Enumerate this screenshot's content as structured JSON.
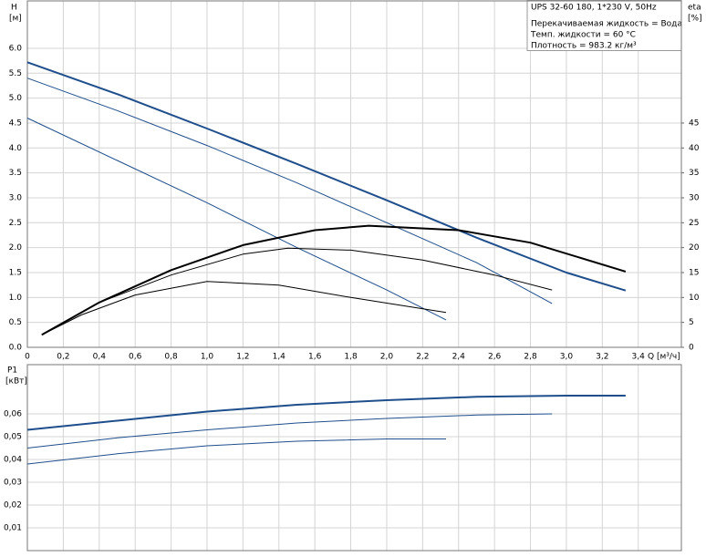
{
  "chart_data": [
    {
      "type": "line",
      "title": "UPS 32-60 180, 1*230 V, 50Hz",
      "annotations": [
        "Перекачиваемая жидкость = Вода",
        "Темп. жидкости = 60 °C",
        "Плотность = 983.2 кг/м³"
      ],
      "ylabel": "H",
      "yunit": "[м]",
      "y2label": "eta",
      "y2unit": "[%]",
      "xlabel": "Q [м³/ч]",
      "xlim": [
        0,
        3.64
      ],
      "ylim": [
        0,
        6.95
      ],
      "y2lim": [
        0,
        69.5
      ],
      "grid": true,
      "xticks": [
        0,
        {
          "value": 0.2,
          "label": "0,2"
        },
        {
          "value": 0.4,
          "label": "0,4"
        },
        {
          "value": 0.6,
          "label": "0,6"
        },
        {
          "value": 0.8,
          "label": "0,8"
        },
        {
          "value": 1.0,
          "label": "1,0"
        },
        {
          "value": 1.2,
          "label": "1,2"
        },
        {
          "value": 1.4,
          "label": "1,4"
        },
        {
          "value": 1.6,
          "label": "1,6"
        },
        {
          "value": 1.8,
          "label": "1,8"
        },
        {
          "value": 2.0,
          "label": "2,0"
        },
        {
          "value": 2.2,
          "label": "2,2"
        },
        {
          "value": 2.4,
          "label": "2,4"
        },
        {
          "value": 2.6,
          "label": "2,6"
        },
        {
          "value": 2.8,
          "label": "2,8"
        },
        {
          "value": 3.0,
          "label": "3,0"
        },
        {
          "value": 3.2,
          "label": "3,2"
        },
        {
          "value": 3.4,
          "label": "3,4"
        }
      ],
      "yticks": [
        {
          "value": 0,
          "label": "0.0"
        },
        0.5,
        {
          "value": 1,
          "label": "1.0"
        },
        1.5,
        {
          "value": 2,
          "label": "2.0"
        },
        2.5,
        {
          "value": 3,
          "label": "3.0"
        },
        3.5,
        {
          "value": 4,
          "label": "4.0"
        },
        4.5,
        {
          "value": 5,
          "label": "5.0"
        },
        5.5,
        {
          "value": 6,
          "label": "6.0"
        }
      ],
      "y2ticks": [
        0,
        5,
        10,
        15,
        20,
        25,
        30,
        35,
        40,
        45
      ],
      "series": [
        {
          "color": "#1f4e8c",
          "width": 2,
          "x": [
            0,
            0.5,
            1.0,
            1.5,
            2.0,
            2.5,
            3.0,
            3.33
          ],
          "values": [
            5.72,
            5.08,
            4.39,
            3.68,
            2.95,
            2.2,
            1.5,
            1.14
          ]
        },
        {
          "color": "#1f4e8c",
          "width": 1,
          "x": [
            0,
            0.5,
            1.0,
            1.5,
            2.0,
            2.5,
            2.92
          ],
          "values": [
            5.4,
            4.75,
            4.05,
            3.3,
            2.5,
            1.7,
            0.88
          ]
        },
        {
          "color": "#1f4e8c",
          "width": 1,
          "x": [
            0,
            0.5,
            1.0,
            1.5,
            2.0,
            2.33
          ],
          "values": [
            4.6,
            3.75,
            2.9,
            2.0,
            1.15,
            0.55
          ]
        },
        {
          "color": "#000000",
          "width": 2,
          "axis": "y2",
          "x": [
            0.08,
            0.4,
            0.8,
            1.2,
            1.6,
            1.9,
            2.4,
            2.8,
            3.33
          ],
          "values": [
            2.5,
            9,
            15.5,
            20.5,
            23.5,
            24.4,
            23.5,
            21,
            15.2
          ]
        },
        {
          "color": "#000000",
          "width": 1,
          "axis": "y2",
          "x": [
            0.08,
            0.4,
            0.8,
            1.2,
            1.45,
            1.8,
            2.2,
            2.6,
            2.92
          ],
          "values": [
            2.5,
            9,
            14.5,
            18.7,
            19.9,
            19.5,
            17.5,
            14.5,
            11.5
          ]
        },
        {
          "color": "#000000",
          "width": 1,
          "axis": "y2",
          "x": [
            0.08,
            0.3,
            0.6,
            1.0,
            1.4,
            1.8,
            2.33
          ],
          "values": [
            2.5,
            6.5,
            10.5,
            13.2,
            12.5,
            10,
            7
          ]
        }
      ]
    },
    {
      "type": "line",
      "ylabel": "P1",
      "yunit": "[кВт]",
      "xlim": [
        0,
        3.64
      ],
      "ylim": [
        0,
        0.0816
      ],
      "grid": true,
      "yticks": [
        {
          "value": 0.01,
          "label": "0,01"
        },
        {
          "value": 0.02,
          "label": "0,02"
        },
        {
          "value": 0.03,
          "label": "0,03"
        },
        {
          "value": 0.04,
          "label": "0,04"
        },
        {
          "value": 0.05,
          "label": "0,05"
        },
        {
          "value": 0.06,
          "label": "0,06"
        }
      ],
      "series": [
        {
          "color": "#1f4e8c",
          "width": 2,
          "x": [
            0,
            0.5,
            1.0,
            1.5,
            2.0,
            2.5,
            3.0,
            3.33
          ],
          "values": [
            0.053,
            0.057,
            0.061,
            0.064,
            0.066,
            0.0675,
            0.068,
            0.068
          ]
        },
        {
          "color": "#1f4e8c",
          "width": 1,
          "x": [
            0,
            0.5,
            1.0,
            1.5,
            2.0,
            2.5,
            2.92
          ],
          "values": [
            0.045,
            0.0495,
            0.053,
            0.056,
            0.058,
            0.0595,
            0.06
          ]
        },
        {
          "color": "#1f4e8c",
          "width": 1,
          "x": [
            0,
            0.5,
            1.0,
            1.5,
            2.0,
            2.33
          ],
          "values": [
            0.038,
            0.0425,
            0.046,
            0.048,
            0.049,
            0.049
          ]
        }
      ]
    }
  ]
}
